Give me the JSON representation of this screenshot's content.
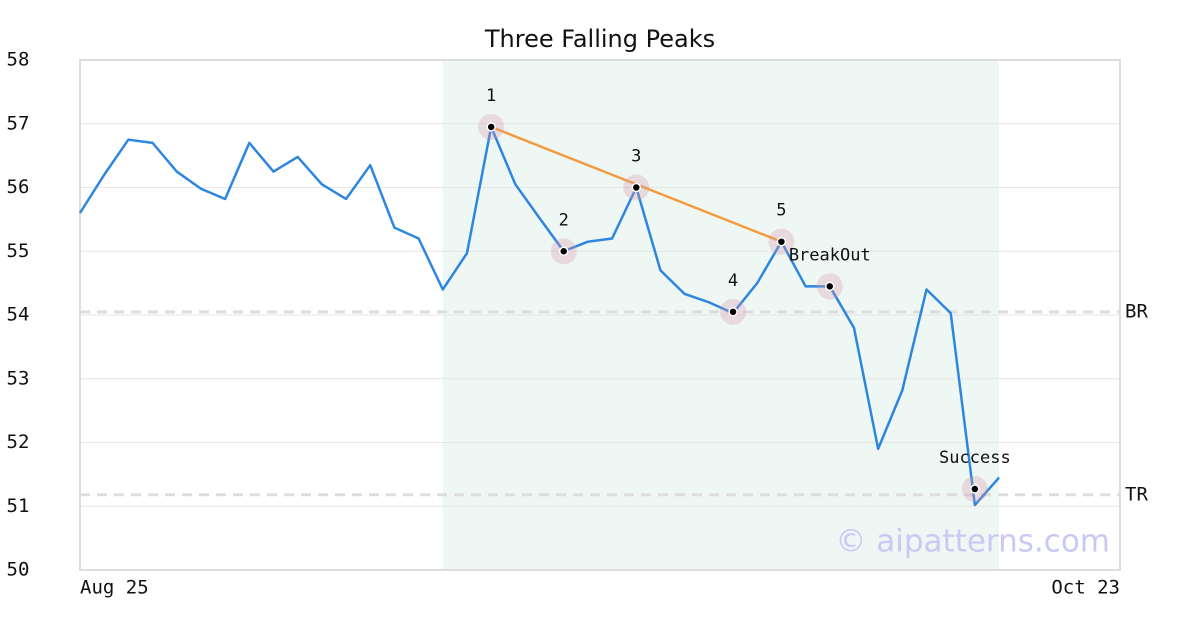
{
  "chart_data": {
    "type": "line",
    "title": "Three Falling Peaks",
    "categories": [
      "Aug 25",
      null,
      null,
      null,
      null,
      null,
      null,
      null,
      null,
      null,
      null,
      null,
      null,
      null,
      null,
      null,
      null,
      null,
      null,
      null,
      null,
      null,
      null,
      null,
      null,
      null,
      null,
      null,
      null,
      null,
      null,
      null,
      null,
      null,
      null,
      null,
      null,
      null,
      null,
      null,
      null,
      null,
      null,
      "Oct 23"
    ],
    "values": [
      55.6,
      56.2,
      56.75,
      56.7,
      56.25,
      55.98,
      55.82,
      56.7,
      56.25,
      56.48,
      56.05,
      55.82,
      56.35,
      55.37,
      55.2,
      54.4,
      54.97,
      56.95,
      56.05,
      55.52,
      55.0,
      55.15,
      55.2,
      56.0,
      54.7,
      54.33,
      54.2,
      54.03,
      54.5,
      55.15,
      54.45,
      54.45,
      53.8,
      51.9,
      52.82,
      54.4,
      54.03,
      51.02,
      51.45,
      null,
      null,
      null,
      null,
      null
    ],
    "color": "#2e86de",
    "ylim": [
      50,
      58
    ],
    "yticks": [
      50,
      51,
      52,
      53,
      54,
      55,
      56,
      57,
      58
    ],
    "grid": true,
    "highlight_range": [
      15,
      38
    ],
    "markers": [
      {
        "label": "1",
        "x": 17,
        "value": 56.95
      },
      {
        "label": "2",
        "x": 20,
        "value": 55.0
      },
      {
        "label": "3",
        "x": 23,
        "value": 56.0
      },
      {
        "label": "4",
        "x": 27,
        "value": 54.05
      },
      {
        "label": "5",
        "x": 29,
        "value": 55.15
      },
      {
        "label": "BreakOut",
        "x": 31,
        "value": 54.45
      },
      {
        "label": "Success",
        "x": 37,
        "value": 51.27
      }
    ],
    "trend_line": {
      "x": [
        17,
        29
      ],
      "values": [
        56.95,
        55.15
      ],
      "color": "#f39c3f"
    },
    "levels": [
      {
        "label": "BR",
        "value": 54.05
      },
      {
        "label": "TR",
        "value": 51.18
      }
    ],
    "watermark": "© aipatterns.com"
  }
}
